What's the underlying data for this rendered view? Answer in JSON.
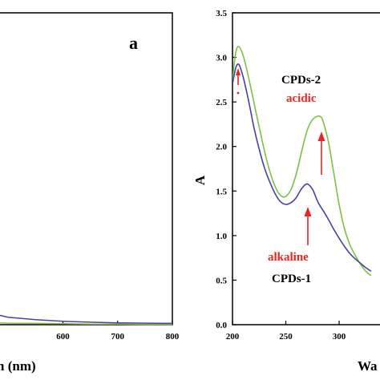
{
  "colors": {
    "green": "#7cc142",
    "blue": "#4b3fa6",
    "red": "#e8261f",
    "axis": "#000000"
  },
  "chart_data": [
    {
      "panel": "a",
      "type": "line",
      "panel_label": "a",
      "xlabel_visible": "n (nm)",
      "xticks": [
        600,
        700,
        800
      ],
      "xlim_visible": [
        485,
        800
      ],
      "ylim": [
        0,
        1
      ],
      "series": [
        {
          "color": "green",
          "x": [
            485,
            500,
            550,
            600,
            650,
            700,
            750,
            800
          ],
          "y": [
            0.006,
            0.005,
            0.004,
            0.003,
            0.002,
            0.002,
            0.001,
            0.001
          ]
        },
        {
          "color": "blue",
          "x": [
            485,
            500,
            550,
            600,
            650,
            700,
            750,
            800
          ],
          "y": [
            0.03,
            0.024,
            0.016,
            0.011,
            0.008,
            0.006,
            0.005,
            0.004
          ]
        }
      ]
    },
    {
      "panel": "b",
      "type": "line",
      "ylabel": "A",
      "xlabel_visible": "Wa",
      "xticks": [
        200,
        250,
        300
      ],
      "yticks": [
        "0.0",
        "0.5",
        "1.0",
        "1.5",
        "2.0",
        "2.5",
        "3.0",
        "3.5"
      ],
      "xlim_visible": [
        200,
        330
      ],
      "ylim": [
        0,
        3.5
      ],
      "series": [
        {
          "name": "CPDs-2",
          "color": "green",
          "x": [
            200,
            203,
            206,
            210,
            215,
            220,
            225,
            230,
            235,
            240,
            245,
            250,
            255,
            260,
            265,
            270,
            275,
            280,
            283,
            285,
            290,
            295,
            300,
            305,
            310,
            315,
            320,
            325,
            330
          ],
          "y": [
            2.75,
            3.05,
            3.12,
            3.02,
            2.78,
            2.5,
            2.22,
            1.95,
            1.72,
            1.55,
            1.45,
            1.44,
            1.52,
            1.7,
            1.95,
            2.18,
            2.3,
            2.34,
            2.33,
            2.28,
            2.05,
            1.7,
            1.35,
            1.08,
            0.9,
            0.78,
            0.68,
            0.6,
            0.55
          ]
        },
        {
          "name": "CPDs-1",
          "color": "blue",
          "x": [
            200,
            203,
            206,
            210,
            215,
            220,
            225,
            230,
            235,
            240,
            245,
            250,
            255,
            260,
            265,
            270,
            275,
            280,
            285,
            290,
            295,
            300,
            305,
            310,
            315,
            320,
            325,
            330
          ],
          "y": [
            2.7,
            2.88,
            2.92,
            2.78,
            2.52,
            2.22,
            1.97,
            1.76,
            1.6,
            1.47,
            1.38,
            1.35,
            1.37,
            1.43,
            1.53,
            1.58,
            1.52,
            1.38,
            1.28,
            1.18,
            1.07,
            0.97,
            0.88,
            0.8,
            0.74,
            0.69,
            0.64,
            0.6
          ]
        }
      ],
      "annotations": {
        "cpds2": "CPDs-2",
        "acidic": "acidic",
        "alkaline": "alkaline",
        "cpds1": "CPDs-1"
      }
    }
  ]
}
